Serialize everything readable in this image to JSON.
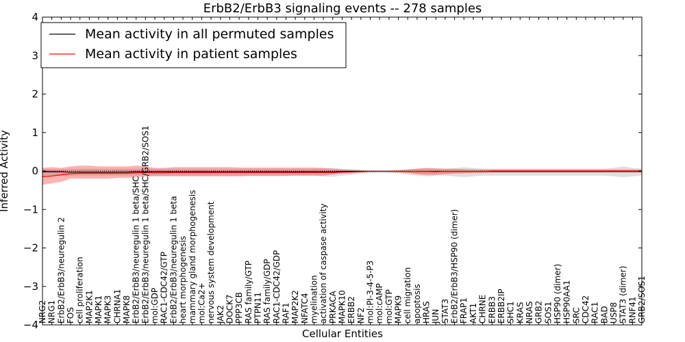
{
  "chart_data": {
    "type": "line",
    "title": "ErbB2/ErbB3 signaling events -- 278 samples",
    "xlabel": "Cellular Entities",
    "ylabel": "Inferred Activity",
    "ylim": [
      -4,
      4
    ],
    "yticks": [
      -4,
      -3,
      -2,
      -1,
      0,
      1,
      2,
      3,
      4
    ],
    "legend_position": "upper-left",
    "categories": [
      "NRG2",
      "NRG1",
      "ErbB2/ErbB3/neuregulin 2",
      "FOS",
      "cell proliferation",
      "MAP2K1",
      "MAPK1",
      "MAPK3",
      "CHRNA1",
      "MAPK8",
      "ErbB2/ErbB3/neuregulin 1 beta/SHC",
      "ErbB2/ErbB3/neuregulin 1 beta/SHC/GRB2/SOS1",
      "mol:GDP",
      "RAC1-CDC42/GTP",
      "ErbB2/ErbB3/neuregulin 1 beta",
      "heart morphogenesis",
      "mammary gland morphogenesis",
      "mol:Ca2+",
      "nervous system development",
      "JAK2",
      "DOCK7",
      "PPP3CB",
      "RAS family/GTP",
      "PTPN11",
      "RAS family/GDP",
      "RAC1-CDC42/GDP",
      "RAF1",
      "MAP2K2",
      "NFATC4",
      "myelination",
      "activation of caspase activity",
      "PRKACA",
      "MAPK10",
      "ERBB2",
      "NF2",
      "mol:PI-3-4-5-P3",
      "mol:cAMP",
      "mol:GTP",
      "MAPK9",
      "cell migration",
      "apoptosis",
      "HRAS",
      "JUN",
      "STAT3",
      "ErbB2/ErbB3/HSP90 (dimer)",
      "FRAP1",
      "AKT1",
      "CHRNE",
      "ERBB3",
      "ERBB2IP",
      "SHC1",
      "KRAS",
      "NRAS",
      "GRB2",
      "SOS1",
      "HSP90 (dimer)",
      "HSP90AA1",
      "SRC",
      "CDC42",
      "RAC1",
      "BAD",
      "USP8",
      "STAT3 (dimer)",
      "RNF41",
      "GRB2/SOS1"
    ],
    "series": [
      {
        "name": "Mean activity in all permuted samples",
        "color": "#000000",
        "values": [
          -0.02,
          -0.02,
          -0.02,
          -0.03,
          -0.03,
          -0.03,
          -0.03,
          -0.03,
          -0.03,
          -0.03,
          -0.02,
          -0.02,
          -0.02,
          -0.02,
          -0.02,
          -0.02,
          -0.02,
          -0.02,
          -0.02,
          -0.02,
          -0.02,
          -0.02,
          -0.02,
          -0.02,
          -0.02,
          -0.02,
          -0.02,
          -0.02,
          -0.02,
          -0.02,
          -0.02,
          -0.02,
          -0.01,
          -0.01,
          -0.01,
          -0.01,
          -0.01,
          -0.01,
          -0.01,
          -0.01,
          -0.01,
          -0.01,
          -0.01,
          -0.01,
          -0.01,
          -0.01,
          -0.01,
          -0.01,
          -0.01,
          -0.01,
          -0.01,
          -0.01,
          -0.01,
          -0.01,
          -0.01,
          -0.01,
          -0.01,
          -0.01,
          -0.01,
          -0.01,
          -0.01,
          -0.01,
          -0.01,
          -0.01,
          -0.01
        ],
        "band_upper": [
          0.05,
          0.05,
          0.05,
          0.06,
          0.06,
          0.06,
          0.06,
          0.06,
          0.06,
          0.06,
          0.06,
          0.06,
          0.06,
          0.06,
          0.06,
          0.06,
          0.06,
          0.06,
          0.06,
          0.06,
          0.06,
          0.06,
          0.06,
          0.06,
          0.06,
          0.06,
          0.06,
          0.06,
          0.06,
          0.06,
          0.07,
          0.08,
          0.06,
          0.05,
          0.03,
          0.02,
          0.02,
          0.02,
          0.03,
          0.04,
          0.06,
          0.07,
          0.06,
          0.06,
          0.07,
          0.1,
          0.08,
          0.06,
          0.06,
          0.06,
          0.06,
          0.06,
          0.06,
          0.06,
          0.06,
          0.06,
          0.06,
          0.06,
          0.06,
          0.06,
          0.06,
          0.08,
          0.12,
          0.08,
          0.06
        ],
        "band_lower": [
          -0.12,
          -0.12,
          -0.12,
          -0.12,
          -0.12,
          -0.12,
          -0.12,
          -0.12,
          -0.12,
          -0.12,
          -0.12,
          -0.12,
          -0.12,
          -0.12,
          -0.12,
          -0.12,
          -0.12,
          -0.12,
          -0.12,
          -0.12,
          -0.12,
          -0.12,
          -0.12,
          -0.12,
          -0.12,
          -0.12,
          -0.12,
          -0.12,
          -0.12,
          -0.12,
          -0.14,
          -0.15,
          -0.12,
          -0.1,
          -0.06,
          -0.04,
          -0.03,
          -0.04,
          -0.06,
          -0.09,
          -0.12,
          -0.14,
          -0.12,
          -0.12,
          -0.14,
          -0.16,
          -0.14,
          -0.12,
          -0.12,
          -0.12,
          -0.12,
          -0.12,
          -0.12,
          -0.12,
          -0.12,
          -0.12,
          -0.12,
          -0.12,
          -0.12,
          -0.12,
          -0.12,
          -0.14,
          -0.16,
          -0.14,
          -0.12
        ]
      },
      {
        "name": "Mean activity in patient samples",
        "color": "#ff0000",
        "values": [
          -0.15,
          -0.13,
          -0.1,
          -0.07,
          -0.06,
          -0.06,
          -0.06,
          -0.06,
          -0.06,
          -0.06,
          -0.05,
          -0.04,
          -0.05,
          -0.05,
          -0.04,
          -0.04,
          -0.04,
          -0.04,
          -0.04,
          -0.04,
          -0.04,
          -0.04,
          -0.04,
          -0.04,
          -0.04,
          -0.04,
          -0.04,
          -0.04,
          -0.04,
          -0.04,
          -0.04,
          -0.04,
          -0.03,
          -0.03,
          -0.02,
          -0.01,
          -0.01,
          -0.01,
          -0.01,
          -0.01,
          -0.01,
          -0.01,
          -0.02,
          -0.01,
          -0.01,
          -0.01,
          -0.01,
          -0.01,
          0.0,
          0.0,
          0.0,
          0.0,
          0.0,
          0.0,
          0.0,
          0.0,
          0.0,
          0.0,
          0.0,
          0.0,
          0.0,
          0.0,
          0.0,
          0.0,
          0.0
        ],
        "band_upper": [
          0.08,
          0.1,
          0.08,
          0.12,
          0.14,
          0.14,
          0.12,
          0.12,
          0.12,
          0.12,
          0.14,
          0.12,
          0.08,
          0.08,
          0.1,
          0.1,
          0.1,
          0.1,
          0.1,
          0.1,
          0.1,
          0.09,
          0.09,
          0.09,
          0.09,
          0.09,
          0.09,
          0.09,
          0.09,
          0.09,
          0.08,
          0.06,
          0.04,
          0.03,
          0.02,
          0.01,
          0.01,
          0.01,
          0.02,
          0.04,
          0.06,
          0.08,
          0.07,
          0.06,
          0.06,
          0.05,
          0.04,
          0.04,
          0.04,
          0.04,
          0.04,
          0.04,
          0.04,
          0.04,
          0.04,
          0.04,
          0.04,
          0.04,
          0.04,
          0.04,
          0.04,
          0.04,
          0.04,
          0.04,
          0.04
        ],
        "band_lower": [
          -0.36,
          -0.32,
          -0.28,
          -0.2,
          -0.2,
          -0.2,
          -0.2,
          -0.2,
          -0.18,
          -0.18,
          -0.16,
          -0.14,
          -0.14,
          -0.14,
          -0.14,
          -0.14,
          -0.14,
          -0.14,
          -0.14,
          -0.14,
          -0.14,
          -0.14,
          -0.13,
          -0.13,
          -0.13,
          -0.13,
          -0.13,
          -0.12,
          -0.12,
          -0.12,
          -0.12,
          -0.09,
          -0.06,
          -0.04,
          -0.03,
          -0.02,
          -0.02,
          -0.02,
          -0.03,
          -0.05,
          -0.08,
          -0.1,
          -0.1,
          -0.08,
          -0.07,
          -0.06,
          -0.05,
          -0.05,
          -0.04,
          -0.04,
          -0.04,
          -0.04,
          -0.04,
          -0.04,
          -0.04,
          -0.04,
          -0.04,
          -0.04,
          -0.04,
          -0.04,
          -0.04,
          -0.04,
          -0.04,
          -0.04,
          -0.04
        ]
      }
    ]
  }
}
